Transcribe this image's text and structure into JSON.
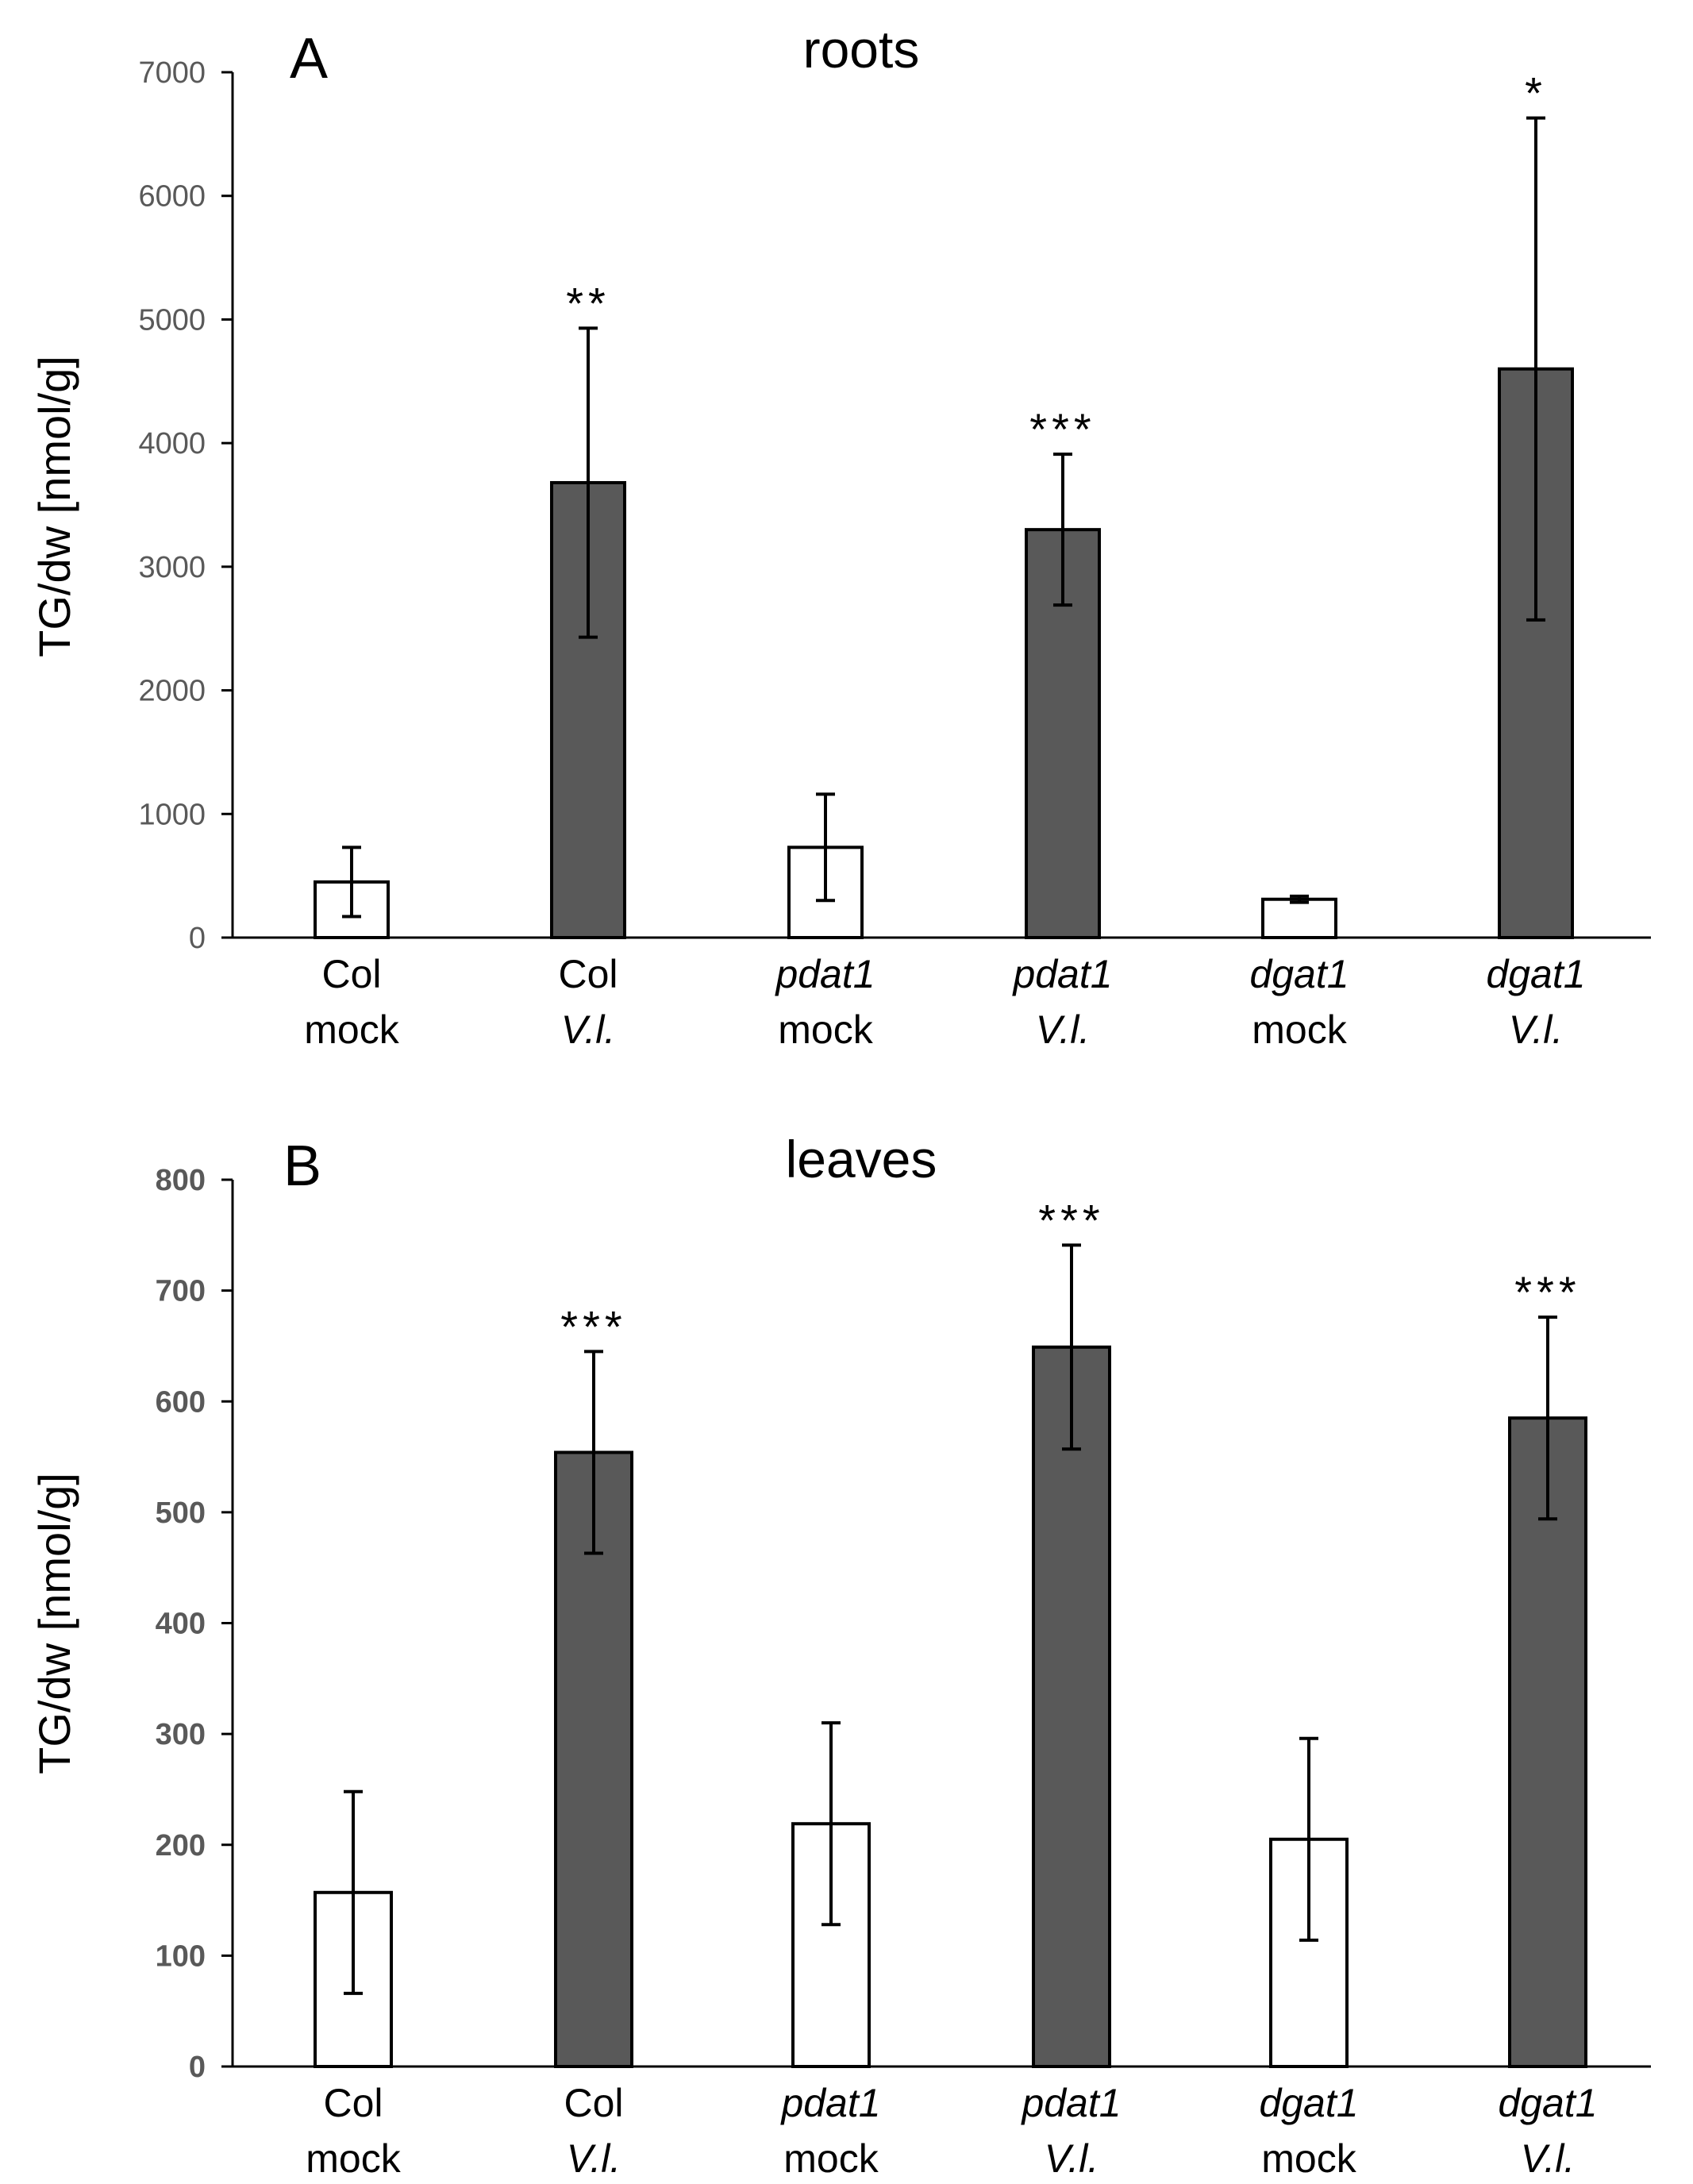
{
  "colors": {
    "mock": "#ffffff",
    "infected": "#595959",
    "stroke": "#000000",
    "tick_text": "#595959"
  },
  "chart_data": [
    {
      "type": "bar",
      "panel": "A",
      "title": "roots",
      "ylabel": "TG/dw [nmol/g]",
      "ylim": [
        0,
        7000
      ],
      "yticks": [
        0,
        1000,
        2000,
        3000,
        4000,
        5000,
        6000,
        7000
      ],
      "categories": [
        {
          "line1": "Col",
          "line2": "mock",
          "italic1": false,
          "italic2": false
        },
        {
          "line1": "Col",
          "line2": "V.l.",
          "italic1": false,
          "italic2": true
        },
        {
          "line1": "pdat1",
          "line2": "mock",
          "italic1": true,
          "italic2": false
        },
        {
          "line1": "pdat1",
          "line2": "V.l.",
          "italic1": true,
          "italic2": true
        },
        {
          "line1": "dgat1",
          "line2": "mock",
          "italic1": true,
          "italic2": false
        },
        {
          "line1": "dgat1",
          "line2": "V.l.",
          "italic1": true,
          "italic2": true
        }
      ],
      "values": [
        450,
        3680,
        730,
        3300,
        310,
        4600
      ],
      "errors": [
        280,
        1250,
        430,
        610,
        25,
        2030
      ],
      "groups": [
        "mock",
        "infected",
        "mock",
        "infected",
        "mock",
        "infected"
      ],
      "significance": [
        "",
        "**",
        "",
        "***",
        "",
        "*"
      ],
      "grid": false,
      "legend": "none"
    },
    {
      "type": "bar",
      "panel": "B",
      "title": "leaves",
      "ylabel": "TG/dw [nmol/g]",
      "ylim": [
        0,
        800
      ],
      "yticks": [
        0,
        100,
        200,
        300,
        400,
        500,
        600,
        700,
        800
      ],
      "categories": [
        {
          "line1": "Col",
          "line2": "mock",
          "italic1": false,
          "italic2": false
        },
        {
          "line1": "Col",
          "line2": "V.l.",
          "italic1": false,
          "italic2": true
        },
        {
          "line1": "pdat1",
          "line2": "mock",
          "italic1": true,
          "italic2": false
        },
        {
          "line1": "pdat1",
          "line2": "V.l.",
          "italic1": true,
          "italic2": true
        },
        {
          "line1": "dgat1",
          "line2": "mock",
          "italic1": true,
          "italic2": false
        },
        {
          "line1": "dgat1",
          "line2": "V.l.",
          "italic1": true,
          "italic2": true
        }
      ],
      "values": [
        157,
        554,
        219,
        649,
        205,
        585
      ],
      "errors": [
        91,
        91,
        91,
        92,
        91,
        91
      ],
      "groups": [
        "mock",
        "infected",
        "mock",
        "infected",
        "mock",
        "infected"
      ],
      "significance": [
        "",
        "***",
        "",
        "***",
        "",
        "***"
      ],
      "grid": false,
      "legend": "none"
    }
  ]
}
